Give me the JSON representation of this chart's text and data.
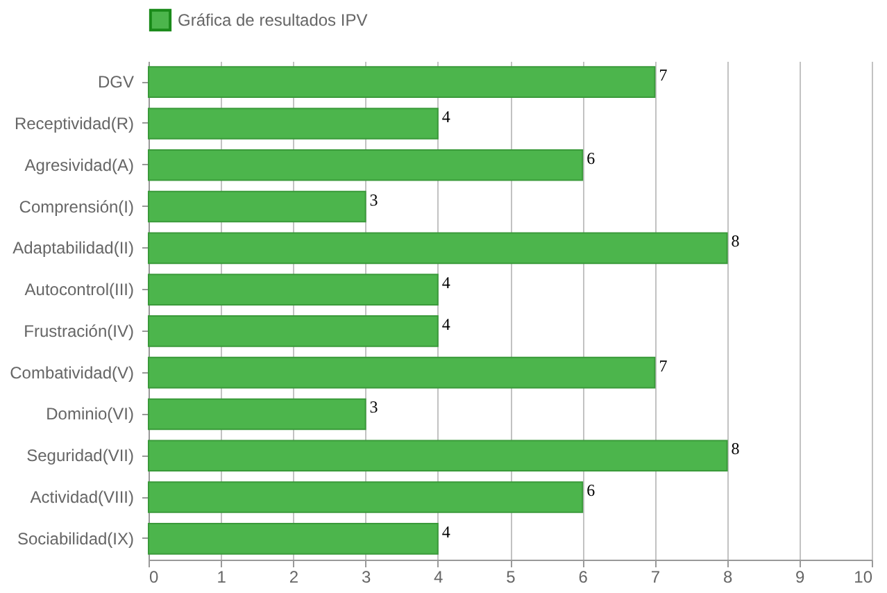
{
  "chart_data": {
    "type": "bar",
    "orientation": "horizontal",
    "categories": [
      "DGV",
      "Receptividad(R)",
      "Agresividad(A)",
      "Comprensión(I)",
      "Adaptabilidad(II)",
      "Autocontrol(III)",
      "Frustración(IV)",
      "Combatividad(V)",
      "Dominio(VI)",
      "Seguridad(VII)",
      "Actividad(VIII)",
      "Sociabilidad(IX)"
    ],
    "series": [
      {
        "name": "Gráfica de resultados IPV",
        "color": "#4cb54c",
        "values": [
          7,
          4,
          6,
          3,
          8,
          4,
          4,
          7,
          3,
          8,
          6,
          4
        ]
      }
    ],
    "xlim": [
      0,
      10
    ],
    "xticks": [
      0,
      1,
      2,
      3,
      4,
      5,
      6,
      7,
      8,
      9,
      10
    ],
    "grid": "x",
    "legend": "top",
    "data_labels": true
  }
}
